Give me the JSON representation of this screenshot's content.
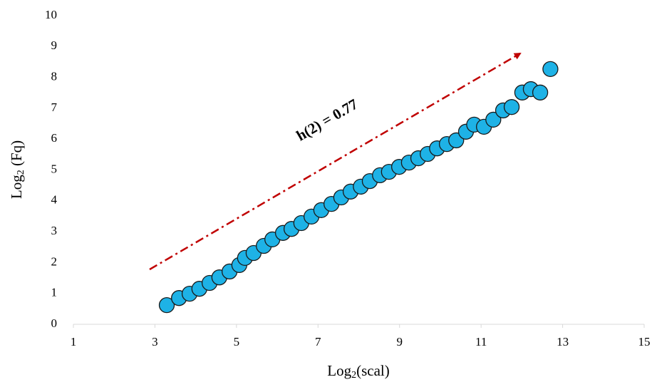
{
  "chart_data": {
    "type": "scatter",
    "x_label": {
      "base": "Log",
      "sub": "2",
      "rest": "(scal)"
    },
    "y_label": {
      "base": "Log",
      "sub": "2",
      "rest": " (Fq)"
    },
    "annotation": "h(2) = 0.77",
    "color": "#1eb2e6",
    "x": [
      3.29,
      3.59,
      3.85,
      4.09,
      4.34,
      4.58,
      4.83,
      5.07,
      5.21,
      5.42,
      5.67,
      5.88,
      6.14,
      6.35,
      6.59,
      6.84,
      7.08,
      7.33,
      7.57,
      7.8,
      8.05,
      8.27,
      8.52,
      8.74,
      8.99,
      9.23,
      9.46,
      9.69,
      9.92,
      10.16,
      10.39,
      10.63,
      10.83,
      11.07,
      11.3,
      11.54,
      11.75,
      12.01,
      12.22,
      12.45,
      12.7
    ],
    "values": [
      0.62,
      0.85,
      0.99,
      1.15,
      1.34,
      1.52,
      1.71,
      1.92,
      2.15,
      2.31,
      2.54,
      2.75,
      2.96,
      3.09,
      3.28,
      3.49,
      3.7,
      3.9,
      4.11,
      4.3,
      4.46,
      4.64,
      4.83,
      4.94,
      5.1,
      5.24,
      5.38,
      5.52,
      5.7,
      5.84,
      5.96,
      6.24,
      6.47,
      6.4,
      6.63,
      6.93,
      7.04,
      7.51,
      7.62,
      7.51,
      8.27
    ],
    "xlim": [
      1,
      15
    ],
    "xticks": [
      1,
      3,
      5,
      7,
      9,
      11,
      13,
      15
    ],
    "ylim": [
      0,
      10
    ],
    "yticks": [
      0,
      1,
      2,
      3,
      4,
      5,
      6,
      7,
      8,
      9,
      10
    ]
  }
}
